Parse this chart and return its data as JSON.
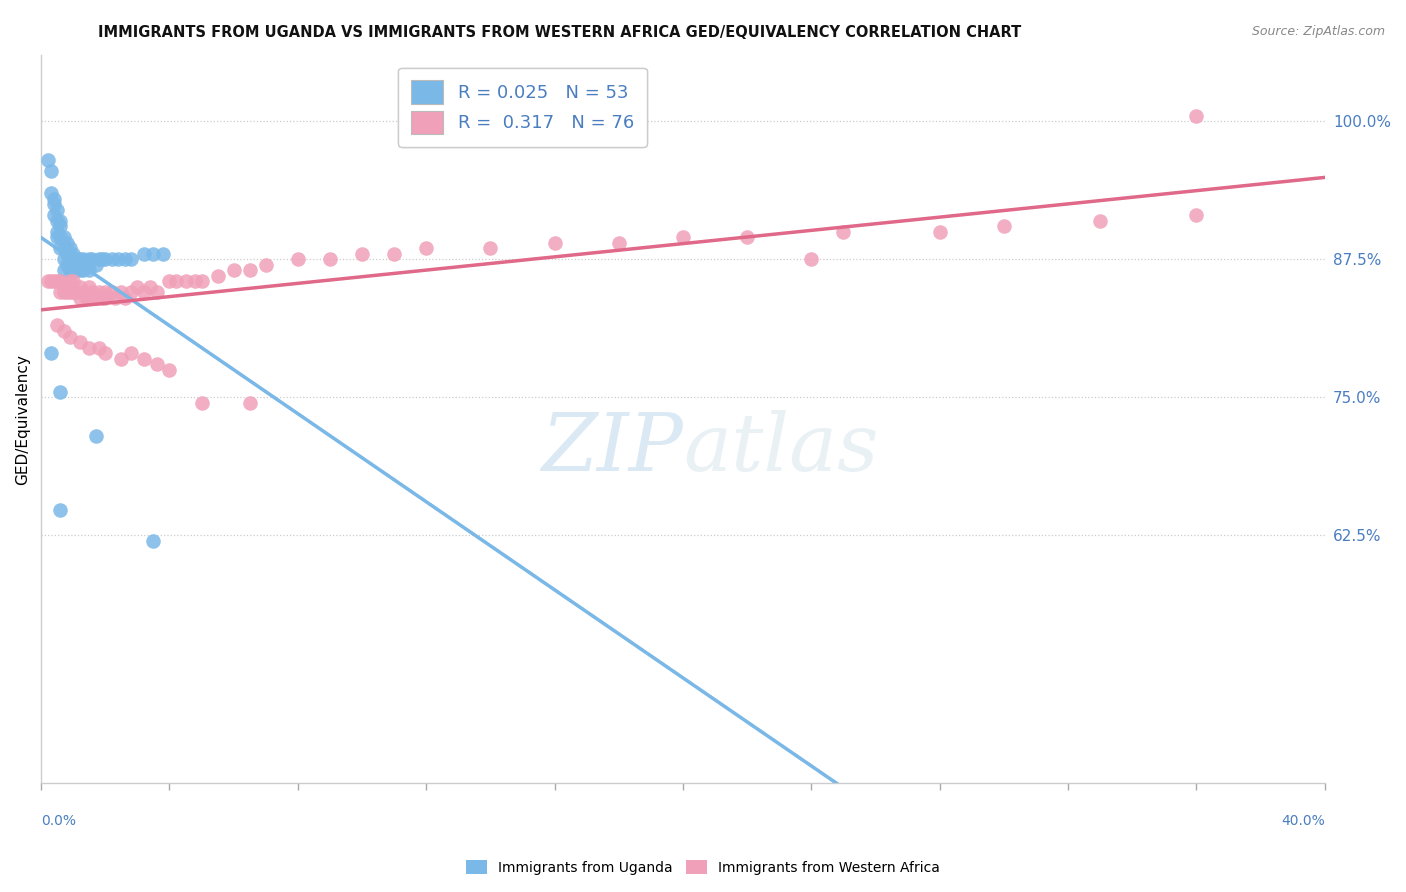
{
  "title": "IMMIGRANTS FROM UGANDA VS IMMIGRANTS FROM WESTERN AFRICA GED/EQUIVALENCY CORRELATION CHART",
  "source": "Source: ZipAtlas.com",
  "ylabel": "GED/Equivalency",
  "right_yticks": [
    1.0,
    0.875,
    0.75,
    0.625
  ],
  "right_ytick_labels": [
    "100.0%",
    "87.5%",
    "75.0%",
    "62.5%"
  ],
  "xlim": [
    0.0,
    0.4
  ],
  "ylim": [
    0.4,
    1.06
  ],
  "R_uganda": 0.025,
  "N_uganda": 53,
  "R_western": 0.317,
  "N_western": 76,
  "color_uganda": "#7ab8e8",
  "color_western": "#f0a0b8",
  "color_text_blue": "#4a7ec0",
  "color_text_pink": "#e06888",
  "legend_label_uganda": "Immigrants from Uganda",
  "legend_label_western": "Immigrants from Western Africa",
  "watermark_zip": "ZIP",
  "watermark_atlas": "atlas",
  "uganda_x": [
    0.002,
    0.003,
    0.003,
    0.004,
    0.004,
    0.004,
    0.005,
    0.005,
    0.005,
    0.005,
    0.006,
    0.006,
    0.006,
    0.006,
    0.007,
    0.007,
    0.007,
    0.007,
    0.008,
    0.008,
    0.008,
    0.009,
    0.009,
    0.009,
    0.01,
    0.01,
    0.01,
    0.011,
    0.011,
    0.012,
    0.012,
    0.013,
    0.013,
    0.014,
    0.015,
    0.015,
    0.016,
    0.017,
    0.018,
    0.019,
    0.02,
    0.022,
    0.024,
    0.026,
    0.028,
    0.032,
    0.035,
    0.038,
    0.003,
    0.006,
    0.017,
    0.035,
    0.006
  ],
  "uganda_y": [
    0.965,
    0.935,
    0.955,
    0.925,
    0.915,
    0.93,
    0.92,
    0.91,
    0.895,
    0.9,
    0.91,
    0.905,
    0.895,
    0.885,
    0.895,
    0.885,
    0.875,
    0.865,
    0.89,
    0.88,
    0.87,
    0.885,
    0.875,
    0.865,
    0.88,
    0.875,
    0.865,
    0.875,
    0.865,
    0.875,
    0.865,
    0.875,
    0.865,
    0.87,
    0.875,
    0.865,
    0.875,
    0.87,
    0.875,
    0.875,
    0.875,
    0.875,
    0.875,
    0.875,
    0.875,
    0.88,
    0.88,
    0.88,
    0.79,
    0.755,
    0.715,
    0.62,
    0.648
  ],
  "western_x": [
    0.002,
    0.003,
    0.004,
    0.005,
    0.006,
    0.006,
    0.007,
    0.007,
    0.008,
    0.008,
    0.009,
    0.009,
    0.01,
    0.01,
    0.011,
    0.012,
    0.012,
    0.013,
    0.014,
    0.015,
    0.015,
    0.016,
    0.017,
    0.018,
    0.019,
    0.02,
    0.02,
    0.022,
    0.023,
    0.025,
    0.026,
    0.028,
    0.03,
    0.032,
    0.034,
    0.036,
    0.04,
    0.042,
    0.045,
    0.048,
    0.05,
    0.055,
    0.06,
    0.065,
    0.07,
    0.08,
    0.09,
    0.1,
    0.11,
    0.12,
    0.14,
    0.16,
    0.18,
    0.2,
    0.22,
    0.25,
    0.28,
    0.3,
    0.33,
    0.36,
    0.005,
    0.007,
    0.009,
    0.012,
    0.015,
    0.018,
    0.02,
    0.025,
    0.028,
    0.032,
    0.036,
    0.04,
    0.05,
    0.065,
    0.24,
    0.36
  ],
  "western_y": [
    0.855,
    0.855,
    0.855,
    0.855,
    0.845,
    0.855,
    0.85,
    0.845,
    0.85,
    0.845,
    0.855,
    0.845,
    0.855,
    0.845,
    0.845,
    0.85,
    0.84,
    0.845,
    0.84,
    0.85,
    0.84,
    0.845,
    0.84,
    0.845,
    0.84,
    0.845,
    0.84,
    0.845,
    0.84,
    0.845,
    0.84,
    0.845,
    0.85,
    0.845,
    0.85,
    0.845,
    0.855,
    0.855,
    0.855,
    0.855,
    0.855,
    0.86,
    0.865,
    0.865,
    0.87,
    0.875,
    0.875,
    0.88,
    0.88,
    0.885,
    0.885,
    0.89,
    0.89,
    0.895,
    0.895,
    0.9,
    0.9,
    0.905,
    0.91,
    0.915,
    0.815,
    0.81,
    0.805,
    0.8,
    0.795,
    0.795,
    0.79,
    0.785,
    0.79,
    0.785,
    0.78,
    0.775,
    0.745,
    0.745,
    0.875,
    1.005
  ]
}
